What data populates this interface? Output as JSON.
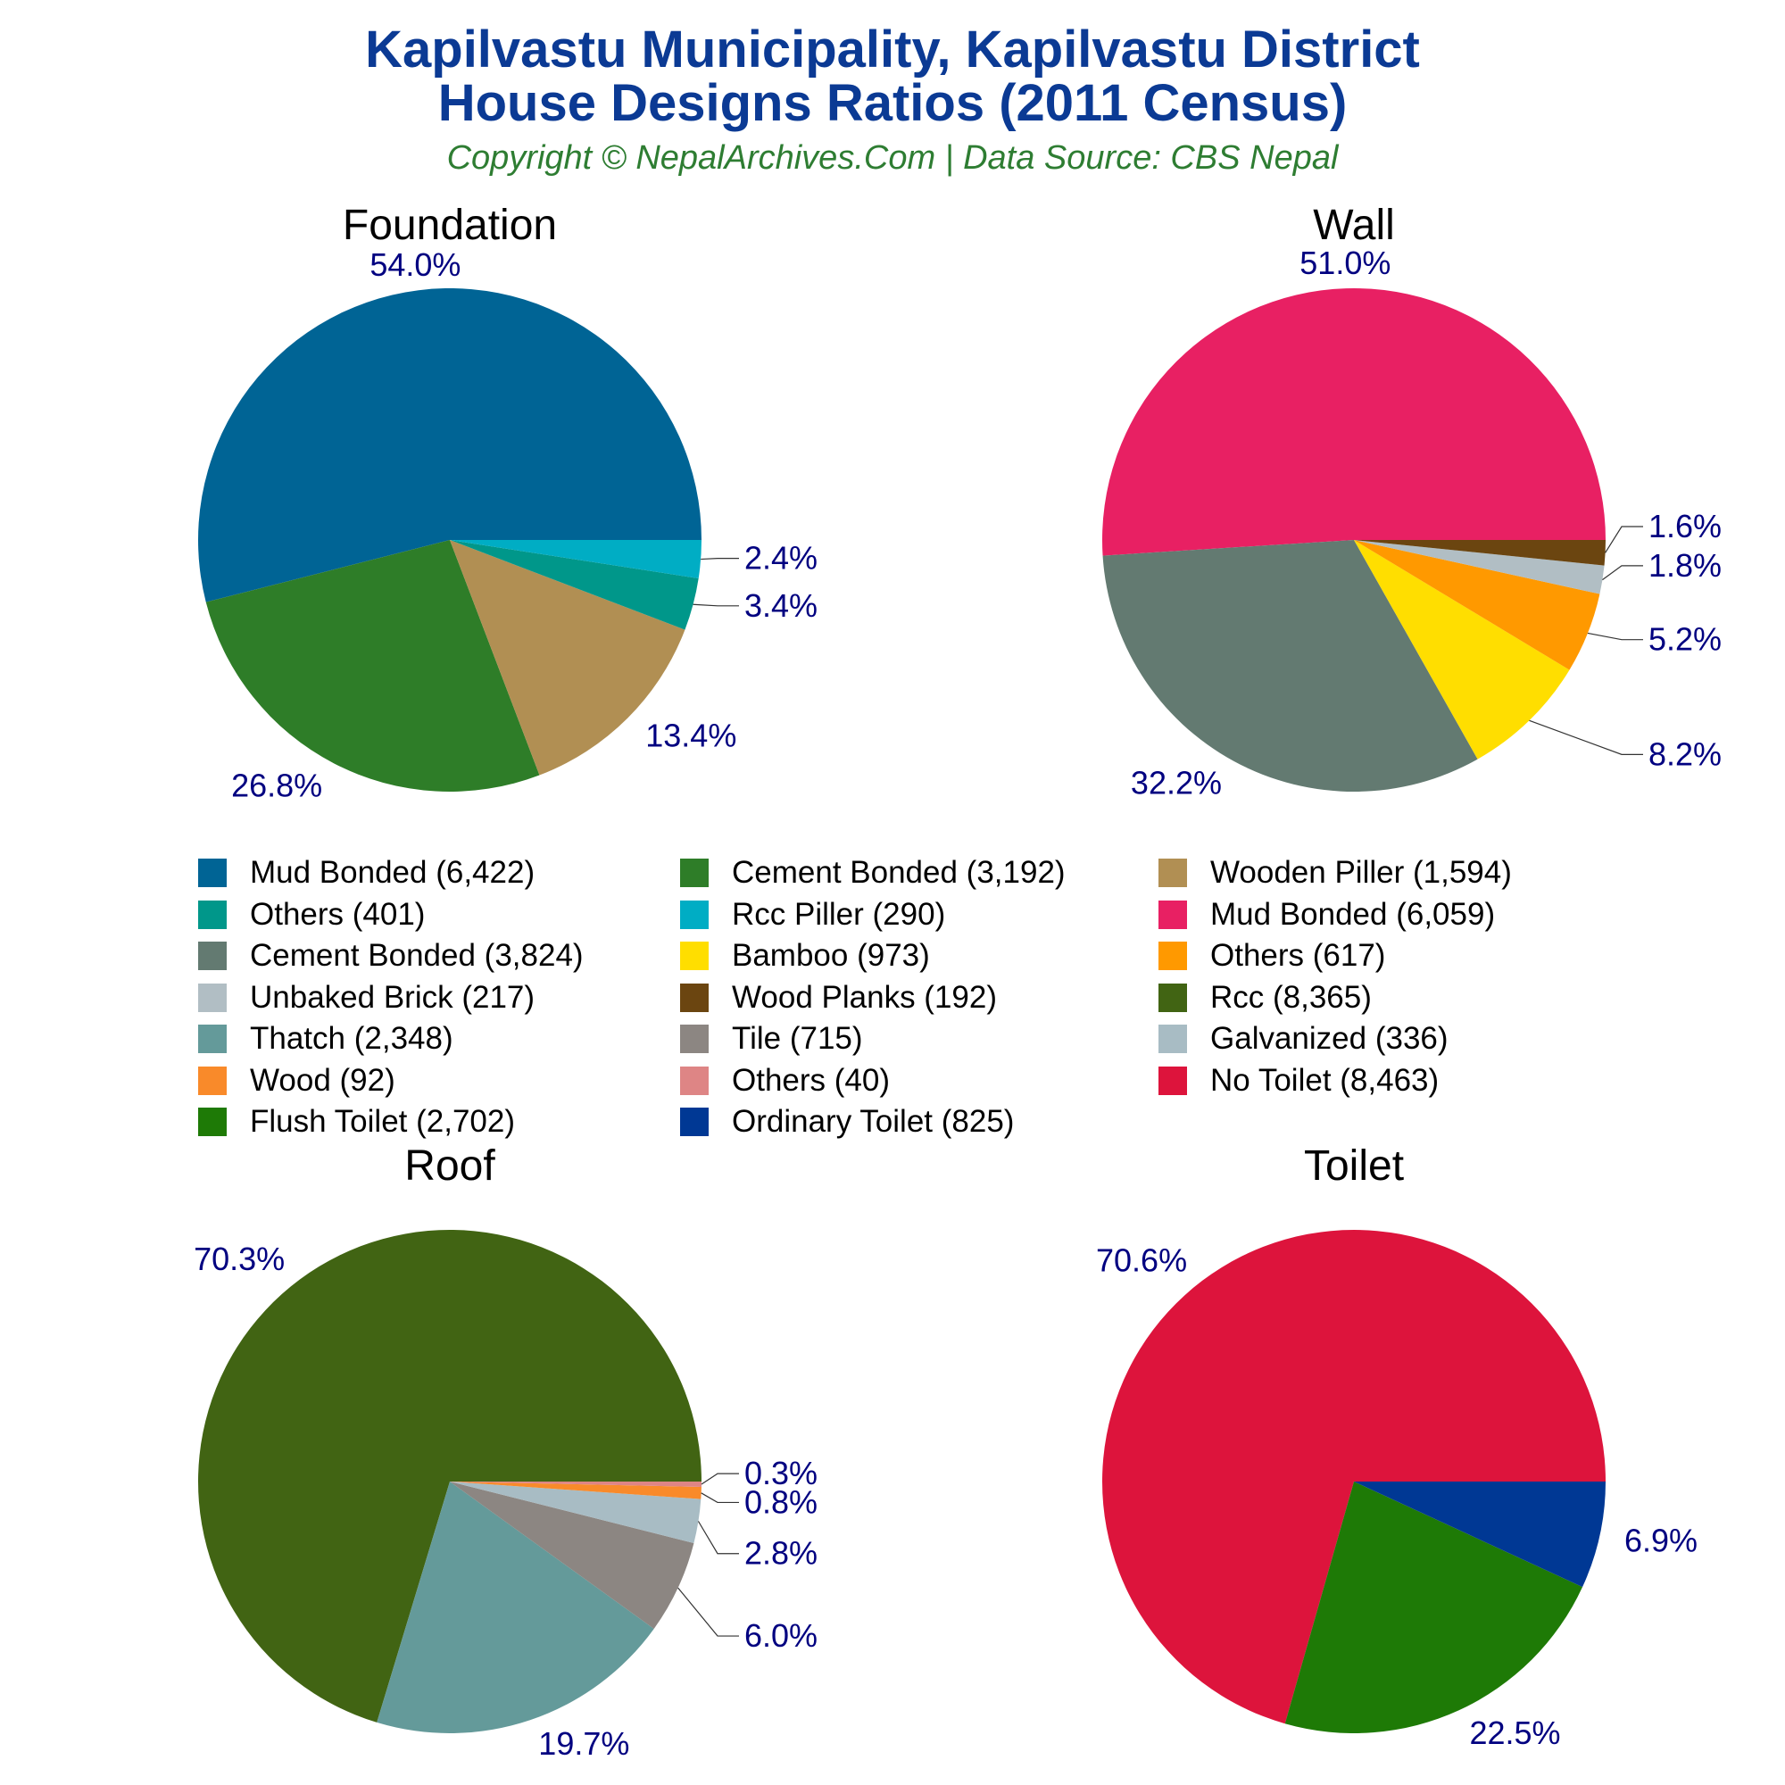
{
  "title_line1": "Kapilvastu Municipality, Kapilvastu District",
  "title_line2": "House Designs Ratios (2011 Census)",
  "subtitle": "Copyright © NepalArchives.Com | Data Source: CBS Nepal",
  "colors": {
    "title": "#0b3a94",
    "subtitle": "#2e7d32",
    "pct_label": "#000080",
    "panel_title": "#000000"
  },
  "chart_data": [
    {
      "type": "pie",
      "title": "Foundation",
      "slices": [
        {
          "label": "Mud Bonded",
          "count": "6,422",
          "value": 6422,
          "pct": "54.0%",
          "color": "#006495"
        },
        {
          "label": "Cement Bonded",
          "count": "3,192",
          "value": 3192,
          "pct": "26.8%",
          "color": "#2e7d28"
        },
        {
          "label": "Wooden Piller",
          "count": "1,594",
          "value": 1594,
          "pct": "13.4%",
          "color": "#b18f53"
        },
        {
          "label": "Others",
          "count": "401",
          "value": 401,
          "pct": "3.4%",
          "color": "#00978a"
        },
        {
          "label": "Rcc Piller",
          "count": "290",
          "value": 290,
          "pct": "2.4%",
          "color": "#00adc4"
        }
      ]
    },
    {
      "type": "pie",
      "title": "Wall",
      "slices": [
        {
          "label": "Mud Bonded",
          "count": "6,059",
          "value": 6059,
          "pct": "51.0%",
          "color": "#e82063"
        },
        {
          "label": "Cement Bonded",
          "count": "3,824",
          "value": 3824,
          "pct": "32.2%",
          "color": "#637a71"
        },
        {
          "label": "Bamboo",
          "count": "973",
          "value": 973,
          "pct": "8.2%",
          "color": "#ffde00"
        },
        {
          "label": "Others",
          "count": "617",
          "value": 617,
          "pct": "5.2%",
          "color": "#ff9900"
        },
        {
          "label": "Unbaked Brick",
          "count": "217",
          "value": 217,
          "pct": "1.8%",
          "color": "#b1bec4"
        },
        {
          "label": "Wood Planks",
          "count": "192",
          "value": 192,
          "pct": "1.6%",
          "color": "#6b4510"
        }
      ]
    },
    {
      "type": "pie",
      "title": "Roof",
      "slices": [
        {
          "label": "Rcc",
          "count": "8,365",
          "value": 8365,
          "pct": "70.3%",
          "color": "#416413"
        },
        {
          "label": "Thatch",
          "count": "2,348",
          "value": 2348,
          "pct": "19.7%",
          "color": "#649a9a"
        },
        {
          "label": "Tile",
          "count": "715",
          "value": 715,
          "pct": "6.0%",
          "color": "#8c8682"
        },
        {
          "label": "Galvanized",
          "count": "336",
          "value": 336,
          "pct": "2.8%",
          "color": "#a8bcc4"
        },
        {
          "label": "Wood",
          "count": "92",
          "value": 92,
          "pct": "0.8%",
          "color": "#f98a2a"
        },
        {
          "label": "Others",
          "count": "40",
          "value": 40,
          "pct": "0.3%",
          "color": "#de8585"
        }
      ]
    },
    {
      "type": "pie",
      "title": "Toilet",
      "slices": [
        {
          "label": "No Toilet",
          "count": "8,463",
          "value": 8463,
          "pct": "70.6%",
          "color": "#dd143c"
        },
        {
          "label": "Flush Toilet",
          "count": "2,702",
          "value": 2702,
          "pct": "22.5%",
          "color": "#1e7a06"
        },
        {
          "label": "Ordinary Toilet",
          "count": "825",
          "value": 825,
          "pct": "6.9%",
          "color": "#003894"
        }
      ]
    }
  ],
  "legend": [
    {
      "text": "Mud Bonded (6,422)",
      "color": "#006495"
    },
    {
      "text": "Cement Bonded (3,192)",
      "color": "#2e7d28"
    },
    {
      "text": "Wooden Piller (1,594)",
      "color": "#b18f53"
    },
    {
      "text": "Others (401)",
      "color": "#00978a"
    },
    {
      "text": "Rcc Piller (290)",
      "color": "#00adc4"
    },
    {
      "text": "Mud Bonded (6,059)",
      "color": "#e82063"
    },
    {
      "text": "Cement Bonded (3,824)",
      "color": "#637a71"
    },
    {
      "text": "Bamboo (973)",
      "color": "#ffde00"
    },
    {
      "text": "Others (617)",
      "color": "#ff9900"
    },
    {
      "text": "Unbaked Brick (217)",
      "color": "#b1bec4"
    },
    {
      "text": "Wood Planks (192)",
      "color": "#6b4510"
    },
    {
      "text": "Rcc (8,365)",
      "color": "#416413"
    },
    {
      "text": "Thatch (2,348)",
      "color": "#649a9a"
    },
    {
      "text": "Tile (715)",
      "color": "#8c8682"
    },
    {
      "text": "Galvanized (336)",
      "color": "#a8bcc4"
    },
    {
      "text": "Wood (92)",
      "color": "#f98a2a"
    },
    {
      "text": "Others (40)",
      "color": "#de8585"
    },
    {
      "text": "No Toilet (8,463)",
      "color": "#dd143c"
    },
    {
      "text": "Flush Toilet (2,702)",
      "color": "#1e7a06"
    },
    {
      "text": "Ordinary Toilet (825)",
      "color": "#003894"
    }
  ]
}
